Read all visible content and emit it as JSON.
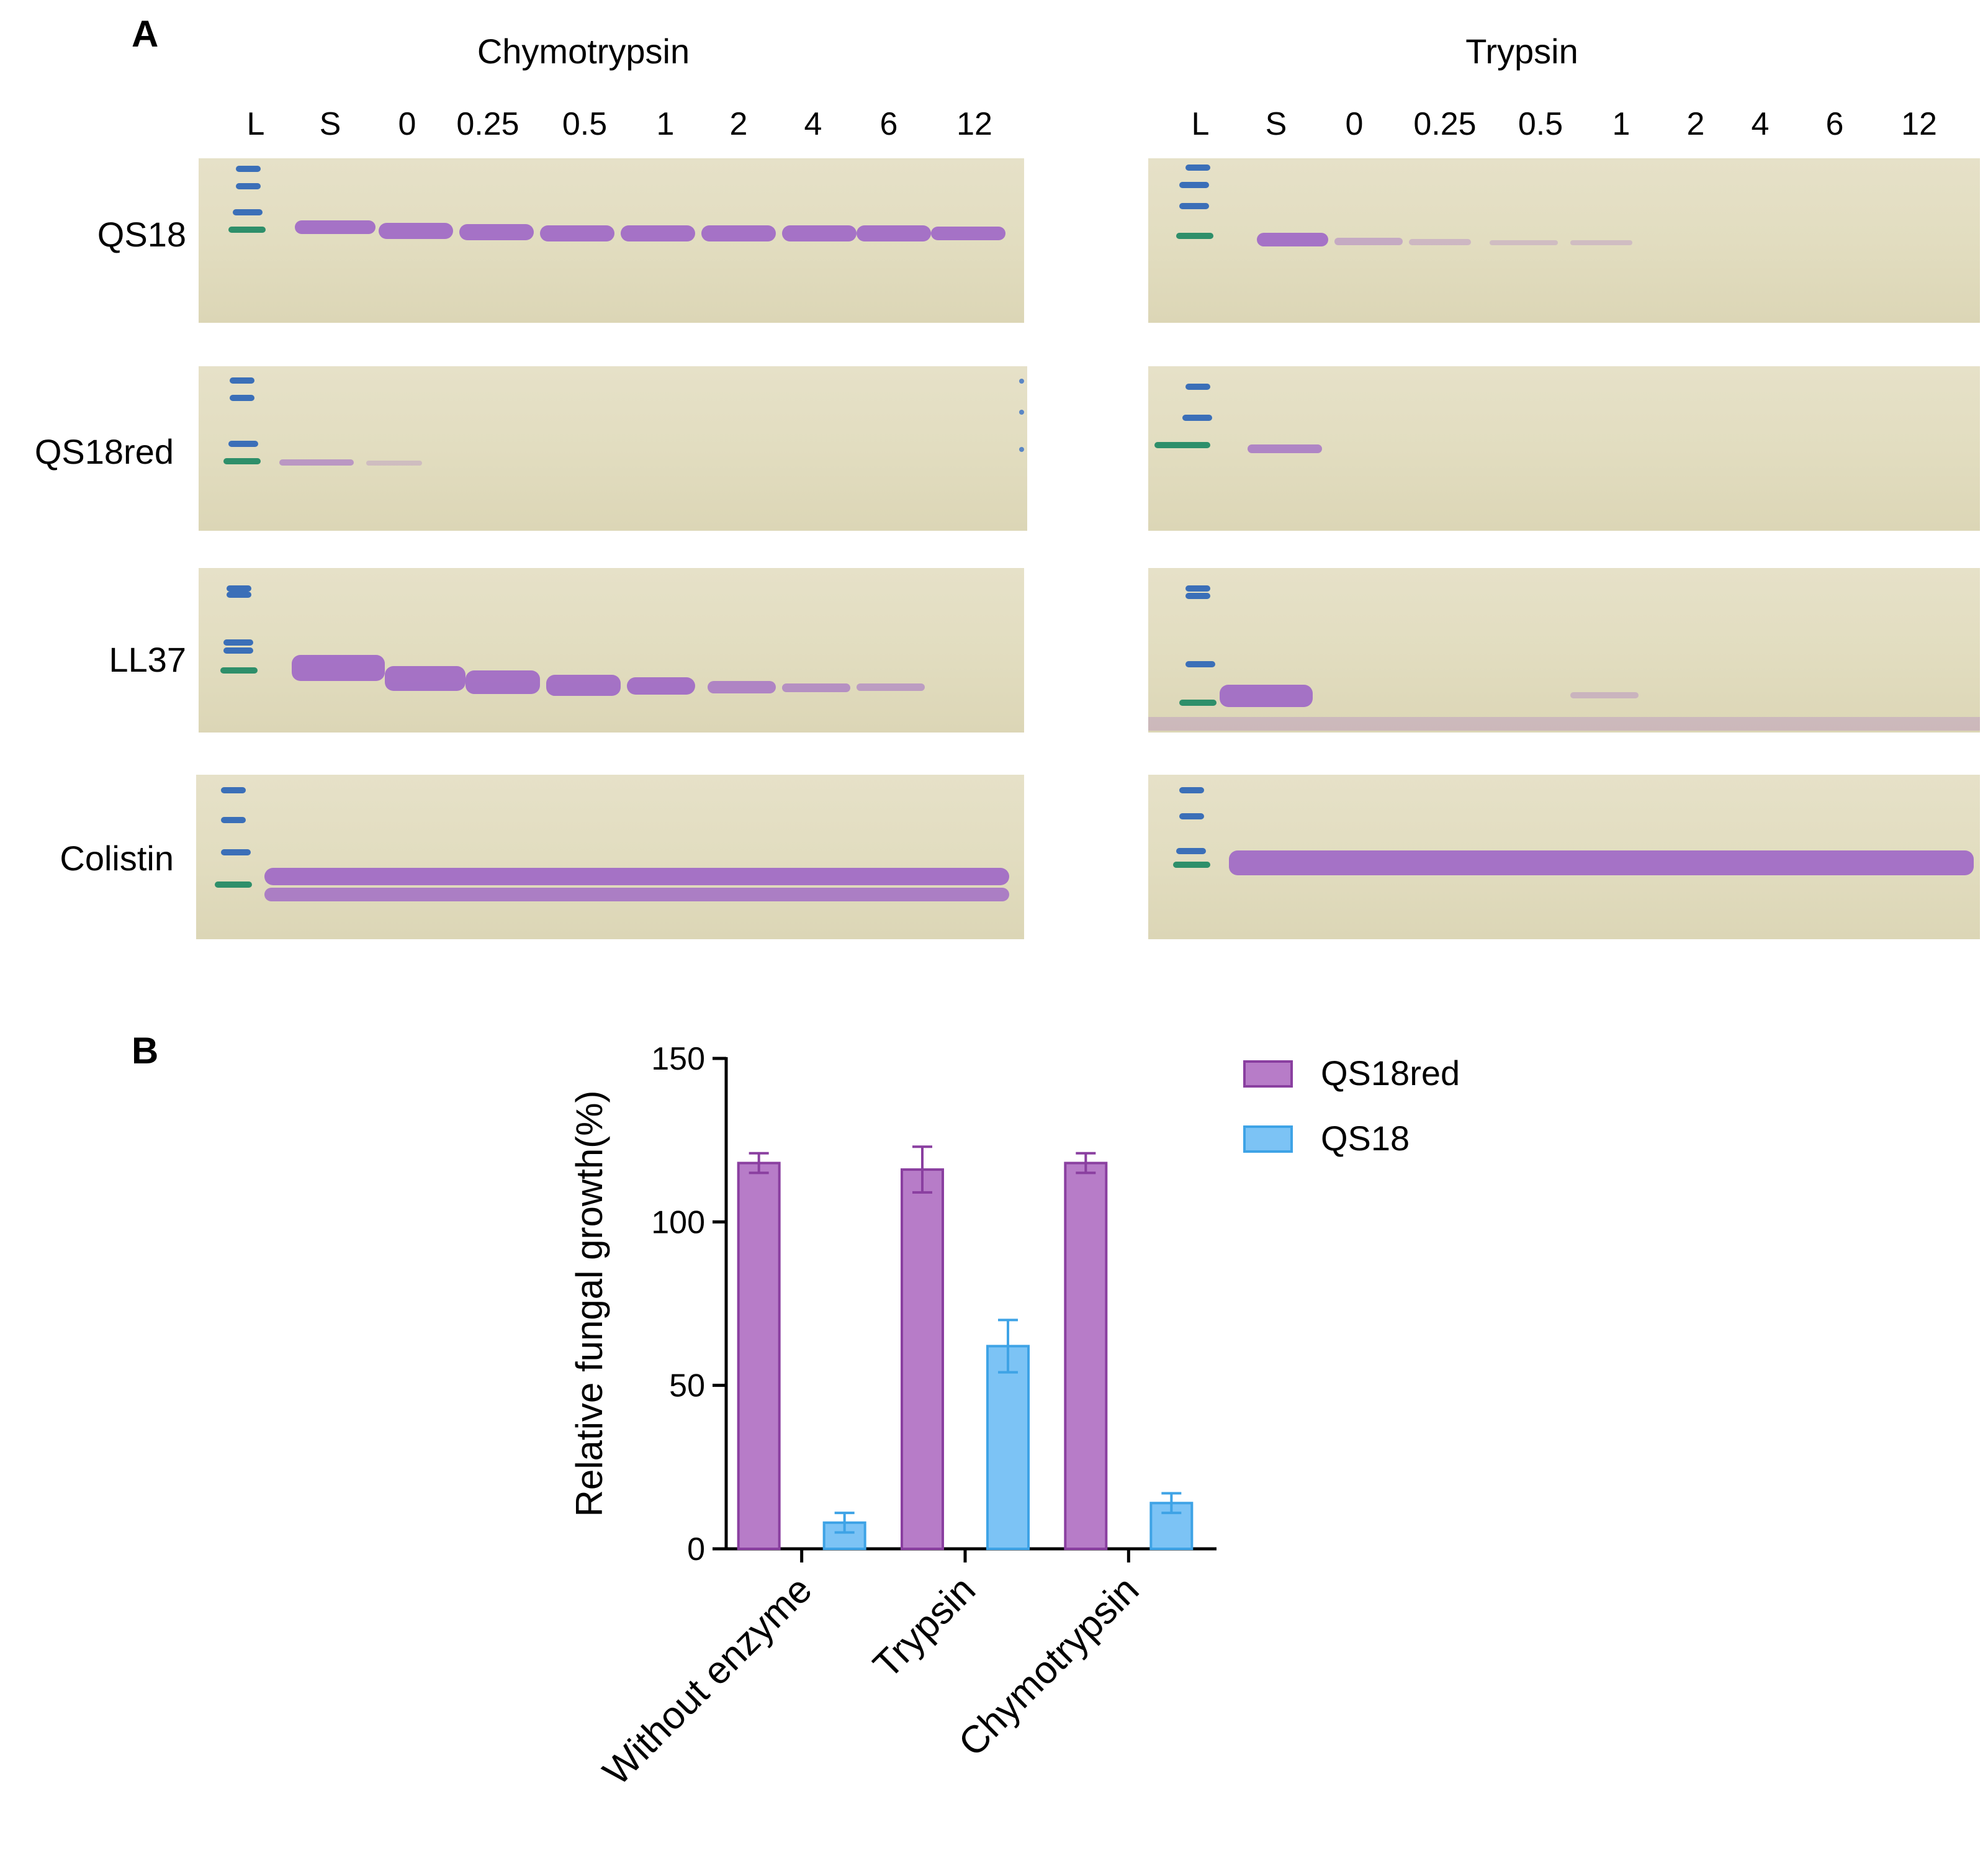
{
  "panel_a": {
    "letter": "A",
    "enzymes": [
      "Chymotrypsin",
      "Trypsin"
    ],
    "lanes": [
      "L",
      "S",
      "0",
      "0.25",
      "0.5",
      "1",
      "2",
      "4",
      "6",
      "12"
    ],
    "peptides": [
      "QS18",
      "QS18red",
      "LL37",
      "Colistin"
    ],
    "band_color": "#9a5fc7",
    "ladder_color": "#3b6fb8"
  },
  "panel_b": {
    "letter": "B"
  },
  "chart_data": {
    "type": "bar",
    "categories": [
      "Without enzyme",
      "Trypsin",
      "Chymotrypsin"
    ],
    "series": [
      {
        "name": "QS18red",
        "values": [
          118,
          116,
          118
        ],
        "errors": [
          3,
          7,
          3
        ],
        "color": "#b77cc8",
        "edge": "#8a3fa0"
      },
      {
        "name": "QS18",
        "values": [
          8,
          62,
          14
        ],
        "errors": [
          3,
          8,
          3
        ],
        "color": "#7cc3f5",
        "edge": "#3ea3e6"
      }
    ],
    "title": "",
    "xlabel": "",
    "ylabel": "Relative fungal growth(%)",
    "ylim": [
      0,
      150
    ],
    "yticks": [
      0,
      50,
      100,
      150
    ],
    "legend": "top-right"
  }
}
